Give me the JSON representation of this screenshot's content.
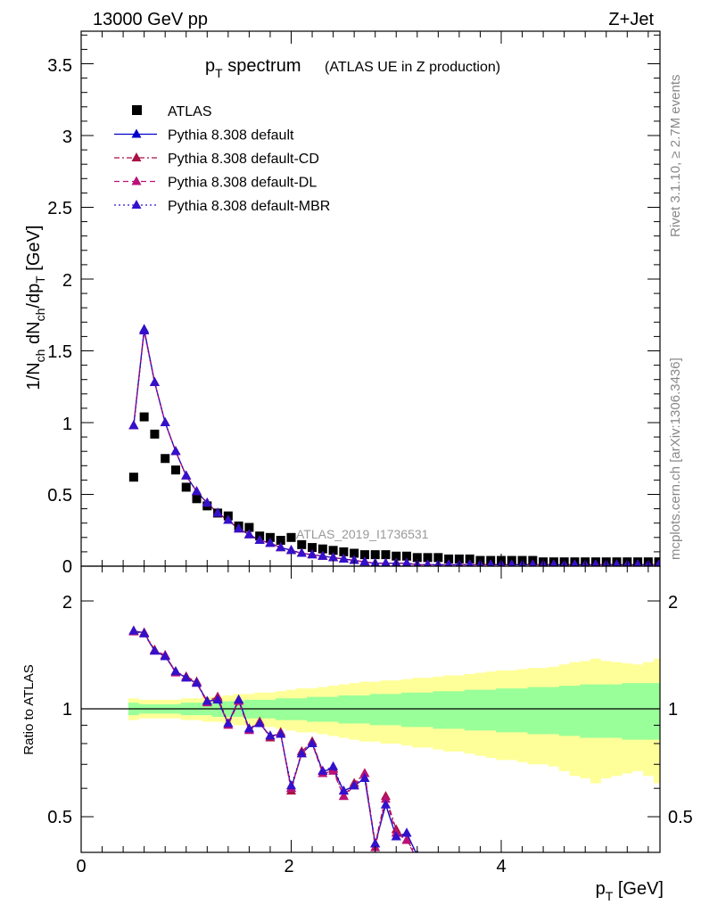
{
  "header": {
    "energy_label": "13000 GeV pp",
    "process_label": "Z+Jet",
    "title_main": "p",
    "title_sub": "T",
    "title_word": " spectrum",
    "title_note": "(ATLAS UE in Z production)",
    "analysis_id": "ATLAS_2019_I1736531",
    "side_rivet": "Rivet 3.1.10, ≥ 2.7M events",
    "side_mcplots": "mcplots.cern.ch [arXiv:1306.3436]"
  },
  "axes": {
    "main_ylabel": "1/N_ch dN_ch/dp_T [GeV]",
    "ratio_ylabel": "Ratio to ATLAS",
    "xlabel": "p_T [GeV]",
    "x_ticks": [
      "0",
      "2",
      "4"
    ],
    "main_y_ticks": [
      "0",
      "0.5",
      "1",
      "1.5",
      "2",
      "2.5",
      "3",
      "3.5"
    ],
    "ratio_y_ticks": [
      "0.5",
      "1",
      "2"
    ],
    "ratio_y_ticks_right": [
      "0.5",
      "1",
      "2"
    ]
  },
  "chart_data": [
    {
      "type": "scatter",
      "panel": "main",
      "xlabel": "p_T [GeV]",
      "ylabel": "1/N_ch dN_ch/dp_T [GeV]",
      "xlim": [
        0,
        5.6
      ],
      "ylim": [
        0,
        3.75
      ],
      "x": [
        0.5,
        0.6,
        0.7,
        0.8,
        0.9,
        1.0,
        1.1,
        1.2,
        1.3,
        1.4,
        1.5,
        1.6,
        1.7,
        1.8,
        1.9,
        2.0,
        2.1,
        2.2,
        2.3,
        2.4,
        2.5,
        2.6,
        2.7,
        2.8,
        2.9,
        3.0,
        3.1,
        3.2,
        3.3,
        3.4,
        3.5,
        3.6,
        3.7,
        3.8,
        3.9,
        4.0,
        4.1,
        4.2,
        4.3,
        4.4,
        4.5,
        4.6,
        4.7,
        4.8,
        4.9,
        5.0,
        5.1,
        5.2,
        5.3,
        5.4,
        5.5
      ],
      "series": [
        {
          "name": "ATLAS",
          "marker": "square",
          "color": "#000000",
          "values": [
            0.62,
            1.04,
            0.92,
            0.75,
            0.67,
            0.55,
            0.47,
            0.42,
            0.37,
            0.35,
            0.28,
            0.27,
            0.21,
            0.2,
            0.18,
            0.2,
            0.15,
            0.13,
            0.12,
            0.11,
            0.1,
            0.09,
            0.08,
            0.08,
            0.08,
            0.07,
            0.07,
            0.06,
            0.06,
            0.06,
            0.05,
            0.05,
            0.05,
            0.04,
            0.04,
            0.04,
            0.04,
            0.04,
            0.04,
            0.03,
            0.03,
            0.03,
            0.03,
            0.03,
            0.03,
            0.03,
            0.03,
            0.03,
            0.03,
            0.03,
            0.03
          ]
        },
        {
          "name": "Pythia 8.308 default",
          "marker": "triangle",
          "color": "#0000cc",
          "line": "solid",
          "values": [
            0.98,
            1.65,
            1.28,
            1.0,
            0.8,
            0.63,
            0.52,
            0.44,
            0.37,
            0.32,
            0.26,
            0.22,
            0.18,
            0.16,
            0.13,
            0.11,
            0.09,
            0.08,
            0.07,
            0.06,
            0.05,
            0.04,
            0.03,
            0.02,
            0.02,
            0.02,
            0.02,
            0.01,
            0.01,
            0.01,
            0.01,
            0.01,
            0.01,
            0.01,
            0.01,
            0.01,
            0.01,
            0.01,
            0.01,
            0.01,
            0.01,
            0.01,
            0.01,
            0.01,
            0.01,
            0.01,
            0.01,
            0.01,
            0.01,
            0.01,
            0.01
          ]
        },
        {
          "name": "Pythia 8.308 default-CD",
          "marker": "triangle",
          "color": "#aa1144",
          "line": "dashdot",
          "values": [
            0.98,
            1.64,
            1.28,
            1.0,
            0.8,
            0.63,
            0.52,
            0.44,
            0.37,
            0.32,
            0.26,
            0.22,
            0.18,
            0.16,
            0.13,
            0.11,
            0.09,
            0.08,
            0.07,
            0.06,
            0.05,
            0.04,
            0.03,
            0.02,
            0.02,
            0.02,
            0.02,
            0.01,
            0.01,
            0.01,
            0.01,
            0.01,
            0.01,
            0.01,
            0.01,
            0.01,
            0.01,
            0.01,
            0.01,
            0.01,
            0.01,
            0.01,
            0.01,
            0.01,
            0.01,
            0.01,
            0.01,
            0.01,
            0.01,
            0.01,
            0.01
          ]
        },
        {
          "name": "Pythia 8.308 default-DL",
          "marker": "triangle",
          "color": "#bb1177",
          "line": "dashed",
          "values": [
            0.98,
            1.64,
            1.28,
            1.0,
            0.8,
            0.63,
            0.52,
            0.44,
            0.37,
            0.32,
            0.26,
            0.22,
            0.18,
            0.16,
            0.13,
            0.11,
            0.09,
            0.08,
            0.07,
            0.06,
            0.05,
            0.04,
            0.03,
            0.02,
            0.02,
            0.02,
            0.02,
            0.01,
            0.01,
            0.01,
            0.01,
            0.01,
            0.01,
            0.01,
            0.01,
            0.01,
            0.01,
            0.01,
            0.01,
            0.01,
            0.01,
            0.01,
            0.01,
            0.01,
            0.01,
            0.01,
            0.01,
            0.01,
            0.01,
            0.01,
            0.01
          ]
        },
        {
          "name": "Pythia 8.308 default-MBR",
          "marker": "triangle",
          "color": "#3311cc",
          "line": "dotted",
          "values": [
            0.98,
            1.64,
            1.28,
            1.0,
            0.8,
            0.63,
            0.52,
            0.44,
            0.37,
            0.32,
            0.26,
            0.22,
            0.18,
            0.16,
            0.13,
            0.11,
            0.09,
            0.08,
            0.07,
            0.06,
            0.05,
            0.04,
            0.03,
            0.02,
            0.02,
            0.02,
            0.02,
            0.01,
            0.01,
            0.01,
            0.01,
            0.01,
            0.01,
            0.01,
            0.01,
            0.01,
            0.01,
            0.01,
            0.01,
            0.01,
            0.01,
            0.01,
            0.01,
            0.01,
            0.01,
            0.01,
            0.01,
            0.01,
            0.01,
            0.01,
            0.01
          ]
        }
      ]
    },
    {
      "type": "line",
      "panel": "ratio",
      "ylabel": "Ratio to ATLAS",
      "xlabel": "p_T [GeV]",
      "xlim": [
        0,
        5.6
      ],
      "ylim": [
        0.4,
        2.3
      ],
      "y_scale": "log",
      "reference_line": 1,
      "bands": {
        "x": [
          0.5,
          0.6,
          0.7,
          0.8,
          0.9,
          1.0,
          1.1,
          1.2,
          1.3,
          1.4,
          1.5,
          1.6,
          1.7,
          1.8,
          1.9,
          2.0,
          2.1,
          2.2,
          2.3,
          2.4,
          2.5,
          2.6,
          2.7,
          2.8,
          2.9,
          3.0,
          3.1,
          3.2,
          3.3,
          3.4,
          3.5,
          3.6,
          3.7,
          3.8,
          3.9,
          4.0,
          4.1,
          4.2,
          4.3,
          4.4,
          4.5,
          4.6,
          4.7,
          4.8,
          4.9,
          5.0,
          5.1,
          5.2,
          5.3,
          5.4,
          5.5
        ],
        "yellow_half_width": [
          0.07,
          0.06,
          0.06,
          0.06,
          0.06,
          0.07,
          0.07,
          0.08,
          0.08,
          0.09,
          0.1,
          0.1,
          0.11,
          0.11,
          0.12,
          0.13,
          0.14,
          0.14,
          0.15,
          0.16,
          0.17,
          0.18,
          0.19,
          0.19,
          0.2,
          0.2,
          0.21,
          0.22,
          0.22,
          0.23,
          0.24,
          0.24,
          0.25,
          0.26,
          0.27,
          0.28,
          0.28,
          0.29,
          0.3,
          0.3,
          0.31,
          0.33,
          0.35,
          0.36,
          0.38,
          0.36,
          0.35,
          0.34,
          0.33,
          0.35,
          0.38
        ],
        "green_half_width": [
          0.04,
          0.03,
          0.03,
          0.03,
          0.03,
          0.04,
          0.04,
          0.04,
          0.05,
          0.05,
          0.05,
          0.06,
          0.06,
          0.06,
          0.07,
          0.07,
          0.07,
          0.08,
          0.08,
          0.08,
          0.09,
          0.09,
          0.09,
          0.1,
          0.1,
          0.1,
          0.11,
          0.11,
          0.11,
          0.12,
          0.12,
          0.12,
          0.13,
          0.13,
          0.13,
          0.14,
          0.14,
          0.14,
          0.15,
          0.15,
          0.15,
          0.16,
          0.16,
          0.17,
          0.17,
          0.17,
          0.17,
          0.18,
          0.18,
          0.18,
          0.18
        ]
      },
      "x": [
        0.5,
        0.6,
        0.7,
        0.8,
        0.9,
        1.0,
        1.1,
        1.2,
        1.3,
        1.4,
        1.5,
        1.6,
        1.7,
        1.8,
        1.9,
        2.0,
        2.1,
        2.2,
        2.3,
        2.4,
        2.5,
        2.6,
        2.7,
        2.8,
        2.9,
        3.0,
        3.1,
        3.2
      ],
      "series": [
        {
          "name": "Pythia 8.308 default",
          "color": "#0000cc",
          "line": "solid",
          "values": [
            1.65,
            1.63,
            1.45,
            1.4,
            1.27,
            1.22,
            1.18,
            1.05,
            1.06,
            0.91,
            1.06,
            0.88,
            0.91,
            0.84,
            0.85,
            0.6,
            0.75,
            0.8,
            0.67,
            0.68,
            0.59,
            0.61,
            0.64,
            0.42,
            0.54,
            0.44,
            0.45,
            0.39
          ]
        },
        {
          "name": "Pythia 8.308 default-CD",
          "color": "#aa1144",
          "line": "dashdot",
          "values": [
            1.65,
            1.63,
            1.46,
            1.41,
            1.27,
            1.23,
            1.19,
            1.05,
            1.08,
            0.91,
            1.06,
            0.88,
            0.92,
            0.83,
            0.86,
            0.59,
            0.76,
            0.81,
            0.67,
            0.68,
            0.57,
            0.62,
            0.66,
            0.42,
            0.57,
            0.46,
            0.43,
            0.39
          ]
        },
        {
          "name": "Pythia 8.308 default-DL",
          "color": "#bb1177",
          "line": "dashed",
          "values": [
            1.64,
            1.62,
            1.45,
            1.41,
            1.26,
            1.22,
            1.18,
            1.04,
            1.07,
            0.9,
            1.05,
            0.87,
            0.91,
            0.84,
            0.85,
            0.6,
            0.75,
            0.8,
            0.66,
            0.67,
            0.57,
            0.61,
            0.66,
            0.41,
            0.56,
            0.45,
            0.43,
            0.38
          ]
        },
        {
          "name": "Pythia 8.308 default-MBR",
          "color": "#3311cc",
          "line": "dotted",
          "values": [
            1.65,
            1.62,
            1.45,
            1.4,
            1.27,
            1.22,
            1.18,
            1.05,
            1.06,
            0.91,
            1.06,
            0.88,
            0.91,
            0.84,
            0.85,
            0.61,
            0.75,
            0.8,
            0.67,
            0.69,
            0.59,
            0.61,
            0.64,
            0.42,
            0.54,
            0.44,
            0.45,
            0.39
          ]
        }
      ]
    }
  ]
}
